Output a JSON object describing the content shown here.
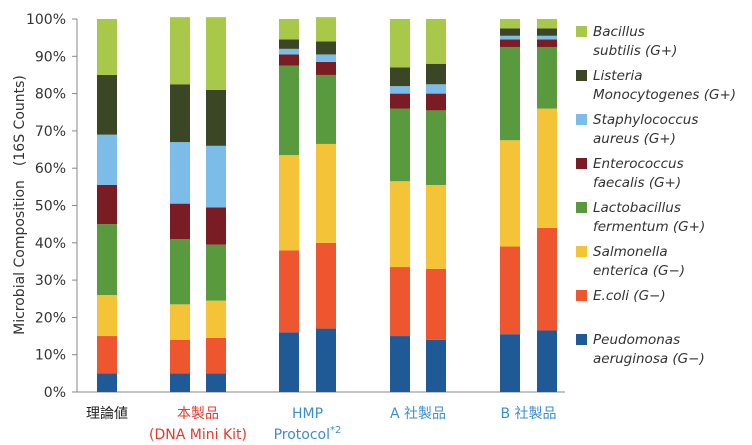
{
  "chart_data": {
    "type": "bar",
    "stacked": true,
    "percent": true,
    "ylabel": "Microbial Composition　(16S Counts)",
    "ylim": [
      0,
      100
    ],
    "yticks": [
      "0%",
      "10%",
      "20%",
      "30%",
      "40%",
      "50%",
      "60%",
      "70%",
      "80%",
      "90%",
      "100%"
    ],
    "grid": false,
    "legend_position": "right",
    "groups": [
      {
        "label_lines": [
          "理論値"
        ],
        "color": "#222222",
        "bars": 1
      },
      {
        "label_lines": [
          "本製品",
          "(DNA Mini Kit)"
        ],
        "color": "#e8382b",
        "bars": 2
      },
      {
        "label_lines": [
          "HMP",
          "Protocol"
        ],
        "superscript": "*2",
        "color": "#3d8ecf",
        "bars": 2
      },
      {
        "label_lines": [
          "A 社製品"
        ],
        "color": "#3d8ecf",
        "bars": 2
      },
      {
        "label_lines": [
          "B 社製品"
        ],
        "color": "#3d8ecf",
        "bars": 2
      }
    ],
    "series": [
      {
        "label_lines": [
          "Peudomonas",
          "aeruginosa (G−)"
        ],
        "color": "#1f5a96",
        "values": [
          5,
          5,
          5,
          16,
          17,
          15,
          14,
          15.5,
          16.5
        ]
      },
      {
        "label_lines": [
          "E.coli (G−)"
        ],
        "color": "#ee5630",
        "values": [
          10,
          9,
          9.5,
          22,
          23,
          18.5,
          19,
          23.5,
          27.5
        ]
      },
      {
        "label_lines": [
          "Salmonella",
          "enterica (G−)"
        ],
        "color": "#f5c338",
        "values": [
          11,
          9.5,
          10,
          25.5,
          26.5,
          23,
          22.5,
          28.5,
          32
        ]
      },
      {
        "label_lines": [
          "Lactobacillus",
          "fermentum (G+)"
        ],
        "color": "#5a9a3e",
        "values": [
          19,
          17.5,
          15,
          24,
          18.5,
          19.5,
          20,
          25,
          16.5
        ]
      },
      {
        "label_lines": [
          "Enterococcus",
          "faecalis (G+)"
        ],
        "color": "#7a1c24",
        "values": [
          10.5,
          9.5,
          10,
          3,
          3.5,
          4,
          4.5,
          2,
          2
        ]
      },
      {
        "label_lines": [
          "Staphylococcus",
          "aureus (G+)"
        ],
        "color": "#7bbde8",
        "values": [
          13.5,
          16.5,
          16.5,
          1.5,
          2,
          2,
          2.5,
          1,
          1
        ]
      },
      {
        "label_lines": [
          "Listeria",
          "Monocytogenes (G+)"
        ],
        "color": "#3b4625",
        "values": [
          16,
          15.5,
          15,
          2.5,
          3.5,
          5,
          5.5,
          2,
          2
        ]
      },
      {
        "label_lines": [
          "Bacillus",
          "subtilis (G+)"
        ],
        "color": "#a8c84a",
        "values": [
          15,
          18,
          19.5,
          5.5,
          6.5,
          13,
          12,
          2.5,
          2.5
        ]
      }
    ]
  }
}
